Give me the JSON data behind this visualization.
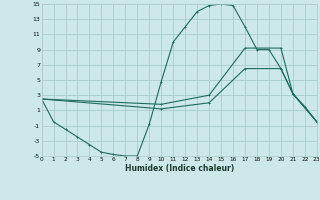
{
  "xlabel": "Humidex (Indice chaleur)",
  "bg_color": "#cce8e8",
  "grid_color": "#aacccc",
  "line_color": "#1e6b5e",
  "x_min": 0,
  "x_max": 23,
  "y_min": -5,
  "y_max": 15,
  "yticks": [
    -5,
    -3,
    -1,
    1,
    3,
    5,
    7,
    9,
    11,
    13,
    15
  ],
  "xticks": [
    0,
    1,
    2,
    3,
    4,
    5,
    6,
    7,
    8,
    9,
    10,
    11,
    12,
    13,
    14,
    15,
    16,
    17,
    18,
    19,
    20,
    21,
    22,
    23
  ],
  "line1_x": [
    0,
    1,
    2,
    3,
    4,
    5,
    6,
    7,
    8,
    9,
    10,
    11,
    12,
    13,
    14,
    15,
    16,
    17,
    18,
    19,
    20,
    21,
    22,
    23
  ],
  "line1_y": [
    2.5,
    -0.5,
    -1.5,
    -2.5,
    -3.5,
    -4.5,
    -4.8,
    -5.0,
    -5.0,
    -0.8,
    4.8,
    10.0,
    12.0,
    14.0,
    14.8,
    15.0,
    14.8,
    12.0,
    9.0,
    9.0,
    6.5,
    3.2,
    1.5,
    -0.5
  ],
  "line2_x": [
    0,
    10,
    14,
    17,
    20,
    21,
    23
  ],
  "line2_y": [
    2.5,
    1.8,
    3.0,
    9.2,
    9.2,
    3.2,
    -0.5
  ],
  "line3_x": [
    0,
    10,
    14,
    17,
    20,
    21,
    23
  ],
  "line3_y": [
    2.5,
    1.2,
    2.0,
    6.5,
    6.5,
    3.2,
    -0.5
  ]
}
